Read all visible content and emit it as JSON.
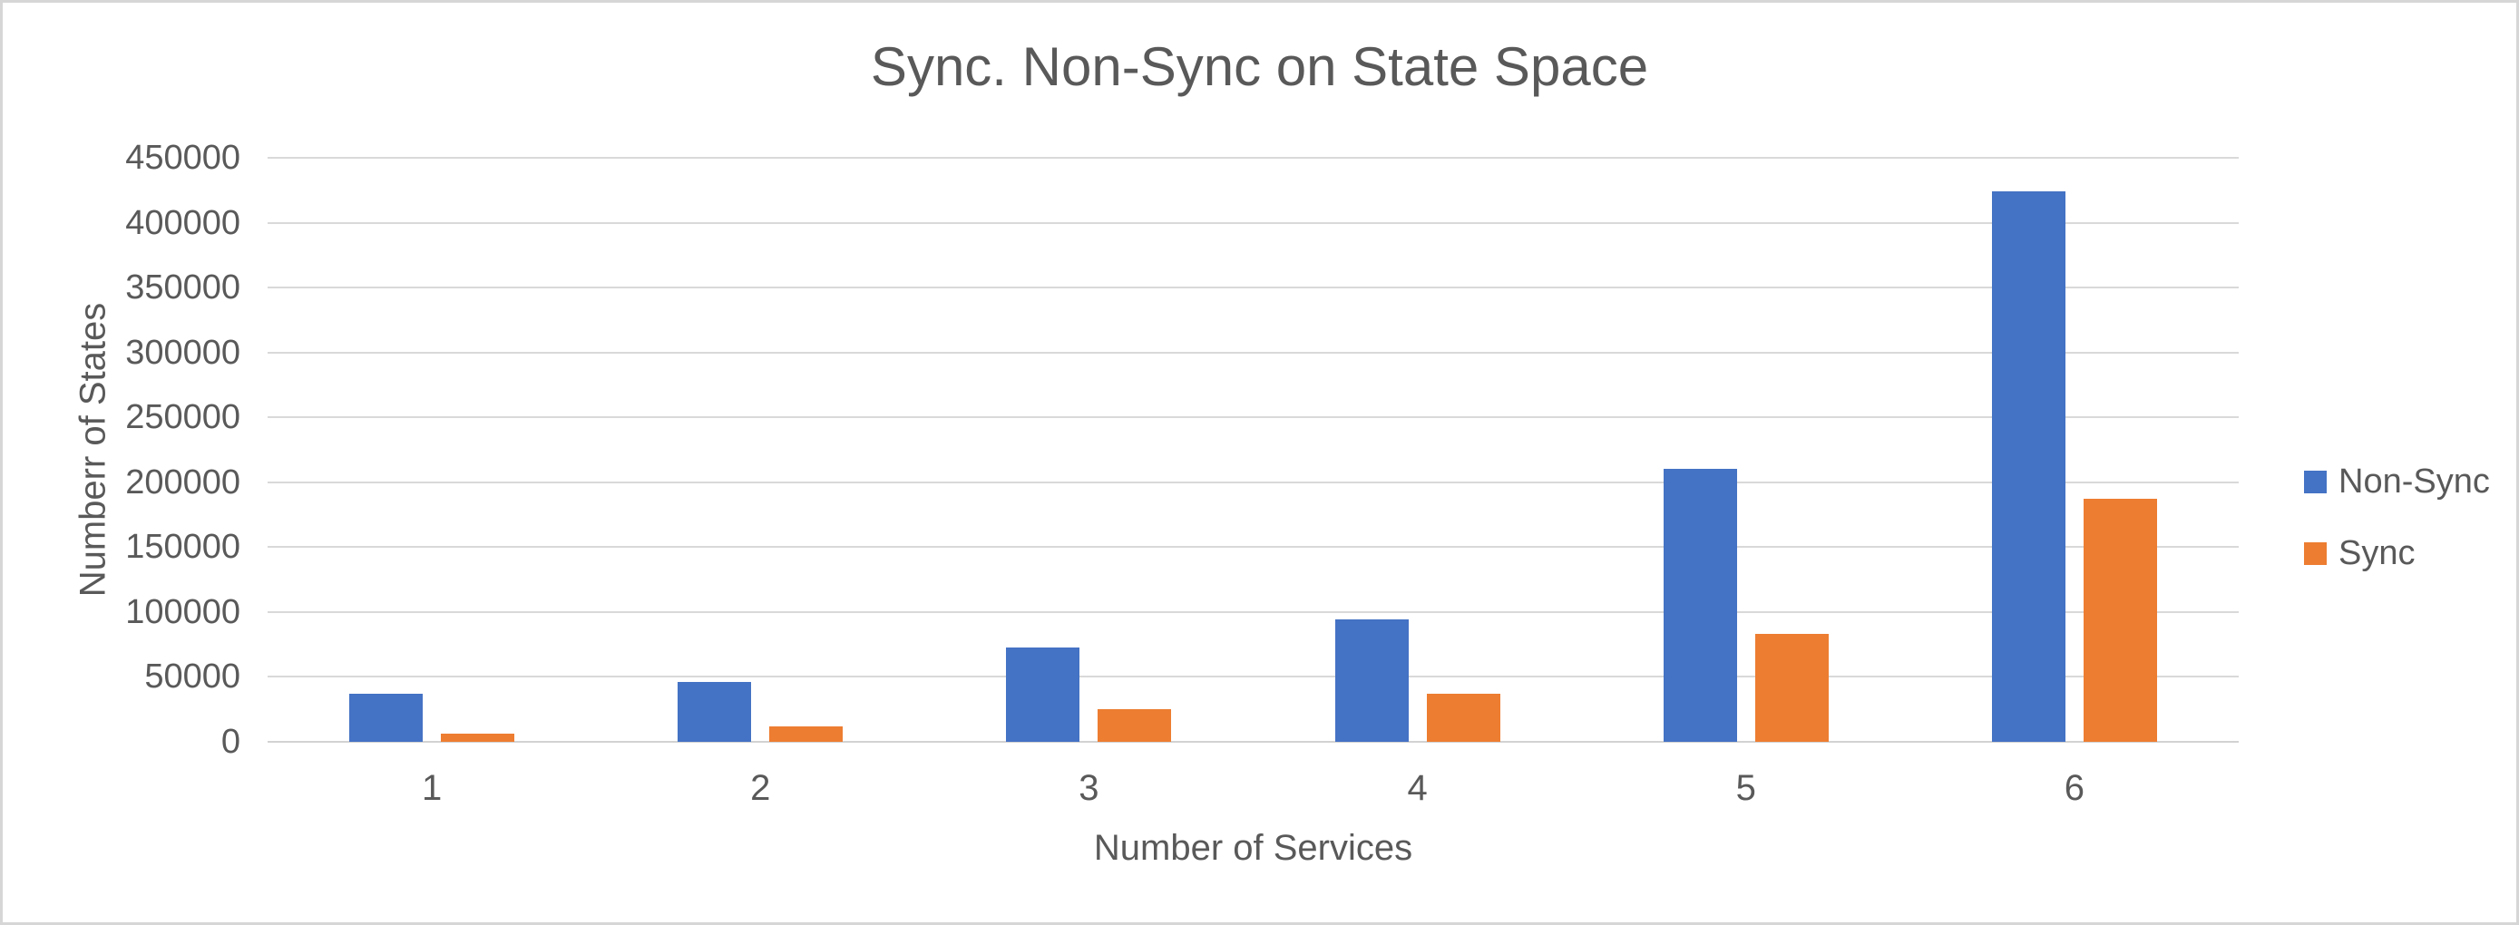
{
  "chart_data": {
    "type": "bar",
    "title": "Sync. Non-Sync on State Space",
    "xlabel": "Number of Services",
    "ylabel": "Numberr of States",
    "categories": [
      "1",
      "2",
      "3",
      "4",
      "5",
      "6"
    ],
    "series": [
      {
        "name": "Non-Sync",
        "color": "#4472C4",
        "values": [
          37000,
          46000,
          73000,
          94000,
          210000,
          424000
        ]
      },
      {
        "name": "Sync",
        "color": "#ED7D31",
        "values": [
          6500,
          12000,
          25000,
          37000,
          83000,
          187000
        ]
      }
    ],
    "ylim": [
      0,
      450000
    ],
    "ytick_step": 50000,
    "yticks": [
      0,
      50000,
      100000,
      150000,
      200000,
      250000,
      300000,
      350000,
      400000,
      450000
    ],
    "grid": true,
    "legend_position": "right",
    "colors": {
      "text": "#595959",
      "gridline": "#D9D9D9",
      "axis_line": "#D2D2D2",
      "frame_border": "#D6D6D6",
      "background": "#FFFFFF"
    }
  }
}
